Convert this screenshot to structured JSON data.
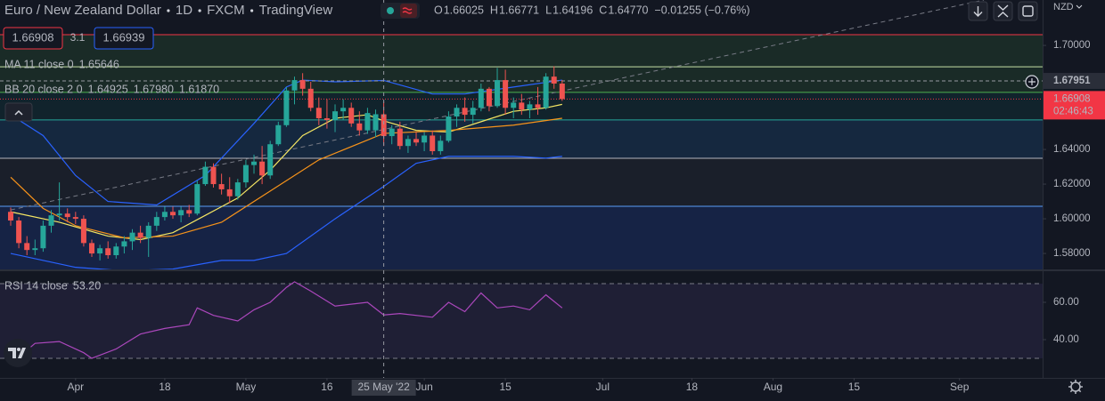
{
  "header": {
    "pieces": [
      "Euro / New Zealand Dollar",
      "1D",
      "FXCM",
      "TradingView"
    ],
    "ohlc": [
      {
        "key": "O",
        "value": "1.66025"
      },
      {
        "key": "H",
        "value": "1.66771"
      },
      {
        "key": "L",
        "value": "1.64196"
      },
      {
        "key": "C",
        "value": "1.64770"
      }
    ],
    "change": "−0.01255 (−0.76%)"
  },
  "trade": {
    "sell": "1.66908",
    "spread": "3.1",
    "buy": "1.66939"
  },
  "currency": "NZD",
  "chart_data": {
    "type": "candlestick",
    "up_color": "#26a69a",
    "down_color": "#ef5350",
    "xlim": [
      -1.32,
      127.25
    ],
    "xticks": [
      {
        "value": 8,
        "label": "Apr"
      },
      {
        "value": 19,
        "label": "18"
      },
      {
        "value": 29,
        "label": "May"
      },
      {
        "value": 39,
        "label": "16"
      },
      {
        "value": 51,
        "label": "Jun"
      },
      {
        "value": 61,
        "label": "15"
      },
      {
        "value": 73,
        "label": "Jul"
      },
      {
        "value": 84,
        "label": "18"
      },
      {
        "value": 94,
        "label": "Aug"
      },
      {
        "value": 104,
        "label": "15"
      },
      {
        "value": 117,
        "label": "Sep"
      }
    ],
    "crosshair": {
      "value": 46,
      "label": "25 May '22"
    },
    "ylim": [
      1.5708,
      1.7262
    ],
    "yticks": [
      {
        "value": 1.7,
        "label": "1.70000"
      },
      {
        "value": 1.64,
        "label": "1.64000"
      },
      {
        "value": 1.62,
        "label": "1.62000"
      },
      {
        "value": 1.6,
        "label": "1.60000"
      },
      {
        "value": 1.58,
        "label": "1.58000"
      }
    ],
    "open": [
      1.604,
      1.599,
      1.586,
      1.582,
      1.583,
      1.596,
      1.602,
      1.603,
      1.601,
      1.6,
      1.586,
      1.58,
      1.583,
      1.579,
      1.584,
      1.587,
      1.592,
      1.589,
      1.596,
      1.601,
      1.604,
      1.602,
      1.605,
      1.603,
      1.62,
      1.63,
      1.62,
      1.617,
      1.613,
      1.621,
      1.631,
      1.633,
      1.625,
      1.643,
      1.654,
      1.674,
      1.68,
      1.675,
      1.664,
      1.658,
      1.657,
      1.662,
      1.664,
      1.655,
      1.651,
      1.651,
      1.66025,
      1.6477,
      1.652,
      1.642,
      1.646,
      1.644,
      1.648,
      1.639,
      1.645,
      1.659,
      1.664,
      1.66,
      1.664,
      1.675,
      1.665,
      1.68,
      1.664,
      1.667,
      1.663,
      1.666,
      1.664,
      1.682,
      1.678
    ],
    "high": [
      1.6065,
      1.601,
      1.59,
      1.588,
      1.599,
      1.605,
      1.621,
      1.606,
      1.604,
      1.602,
      1.588,
      1.585,
      1.587,
      1.586,
      1.59,
      1.594,
      1.596,
      1.598,
      1.604,
      1.607,
      1.607,
      1.607,
      1.608,
      1.622,
      1.633,
      1.632,
      1.626,
      1.624,
      1.623,
      1.634,
      1.637,
      1.642,
      1.645,
      1.656,
      1.676,
      1.682,
      1.684,
      1.679,
      1.67,
      1.669,
      1.666,
      1.669,
      1.667,
      1.662,
      1.664,
      1.663,
      1.66771,
      1.654,
      1.656,
      1.648,
      1.65,
      1.65,
      1.651,
      1.648,
      1.662,
      1.666,
      1.67,
      1.668,
      1.678,
      1.676,
      1.687,
      1.686,
      1.67,
      1.672,
      1.668,
      1.676,
      1.684,
      1.688,
      1.68
    ],
    "low": [
      1.596,
      1.583,
      1.579,
      1.579,
      1.581,
      1.592,
      1.599,
      1.598,
      1.597,
      1.584,
      1.578,
      1.576,
      1.577,
      1.577,
      1.58,
      1.582,
      1.586,
      1.578,
      1.593,
      1.599,
      1.6,
      1.598,
      1.601,
      1.602,
      1.619,
      1.618,
      1.614,
      1.609,
      1.611,
      1.618,
      1.626,
      1.62,
      1.623,
      1.642,
      1.653,
      1.666,
      1.671,
      1.662,
      1.654,
      1.652,
      1.65,
      1.657,
      1.653,
      1.648,
      1.649,
      1.647,
      1.64196,
      1.643,
      1.64,
      1.638,
      1.642,
      1.639,
      1.637,
      1.637,
      1.644,
      1.653,
      1.656,
      1.655,
      1.662,
      1.662,
      1.664,
      1.66,
      1.658,
      1.66,
      1.658,
      1.66,
      1.663,
      1.675,
      1.668
    ],
    "close": [
      1.599,
      1.586,
      1.582,
      1.583,
      1.596,
      1.602,
      1.603,
      1.601,
      1.6,
      1.586,
      1.58,
      1.583,
      1.579,
      1.584,
      1.587,
      1.592,
      1.589,
      1.596,
      1.601,
      1.604,
      1.602,
      1.605,
      1.603,
      1.62,
      1.63,
      1.62,
      1.617,
      1.613,
      1.621,
      1.631,
      1.633,
      1.625,
      1.643,
      1.654,
      1.674,
      1.68,
      1.675,
      1.664,
      1.658,
      1.657,
      1.662,
      1.664,
      1.655,
      1.651,
      1.661,
      1.6603,
      1.6477,
      1.652,
      1.642,
      1.646,
      1.644,
      1.648,
      1.639,
      1.645,
      1.659,
      1.664,
      1.66,
      1.664,
      1.675,
      1.665,
      1.68,
      1.664,
      1.667,
      1.663,
      1.666,
      1.664,
      1.682,
      1.678,
      1.66908
    ],
    "last_price": {
      "value": 1.66908,
      "countdown": "02:46:43",
      "color": "#f23645"
    },
    "price_line": {
      "value": 1.67951
    },
    "levels": [
      {
        "value": 1.7062,
        "color": "#f23645",
        "fill": "rgba(76,175,80,0.13)"
      },
      {
        "value": 1.6877,
        "color": "#c5e1a5",
        "fill": "rgba(76,175,80,0.13)"
      },
      {
        "value": 1.6729,
        "color": "#4caf50",
        "fill": "rgba(0,150,136,0.10)"
      },
      {
        "value": 1.657,
        "color": "#26a69a",
        "fill": "rgba(33,150,243,0.14)"
      },
      {
        "value": 1.6349,
        "color": "#b2b5be",
        "fill": "rgba(120,123,134,0.08)"
      },
      {
        "value": 1.6072,
        "color": "#5b9cf6",
        "fill": "rgba(41,98,255,0.16)"
      }
    ],
    "trendline": {
      "color": "#787b86",
      "x": [
        0,
        120
      ],
      "values": [
        1.6051,
        1.7262
      ]
    },
    "series": [
      {
        "name": "MA 11 close 0",
        "lines": [
          {
            "color": "#f5e663",
            "value_label": "1.65646",
            "x": [
              0,
              6,
              12,
              16,
              20,
              24,
              28,
              32,
              36,
              40,
              44,
              46,
              50,
              54,
              58,
              62,
              66,
              68
            ],
            "values": [
              1.604,
              1.598,
              1.59,
              1.588,
              1.592,
              1.602,
              1.612,
              1.628,
              1.648,
              1.658,
              1.66,
              1.65646,
              1.651,
              1.65,
              1.656,
              1.662,
              1.664,
              1.666
            ]
          }
        ]
      },
      {
        "name": "BB 20 close 2 0",
        "lines": [
          {
            "color": "#f7931a",
            "value_label": "1.64925",
            "x": [
              0,
              4,
              8,
              14,
              20,
              26,
              32,
              38,
              46,
              54,
              62,
              68
            ],
            "values": [
              1.624,
              1.606,
              1.596,
              1.589,
              1.59,
              1.598,
              1.616,
              1.634,
              1.64925,
              1.651,
              1.654,
              1.658
            ]
          },
          {
            "color": "#2962ff",
            "value_label": "1.67980",
            "x": [
              0,
              4,
              8,
              12,
              18,
              24,
              30,
              34,
              36,
              40,
              46,
              52,
              56,
              62,
              68
            ],
            "values": [
              1.66,
              1.648,
              1.625,
              1.61,
              1.608,
              1.625,
              1.655,
              1.676,
              1.68,
              1.679,
              1.6798,
              1.672,
              1.672,
              1.676,
              1.68
            ]
          },
          {
            "color": "#2962ff",
            "value_label": "1.61870",
            "x": [
              0,
              8,
              14,
              20,
              26,
              30,
              34,
              40,
              46,
              50,
              54,
              62,
              66,
              68
            ],
            "values": [
              1.58,
              1.572,
              1.57,
              1.571,
              1.576,
              1.576,
              1.58,
              1.6,
              1.6187,
              1.632,
              1.636,
              1.636,
              1.635,
              1.636
            ]
          }
        ]
      }
    ]
  },
  "rsi_data": {
    "type": "line",
    "name": "RSI 14 close",
    "value_label": "53.20",
    "color": "#ab47bc",
    "ylim": [
      19.52,
      76.67
    ],
    "yticks": [
      {
        "value": 60,
        "label": "60.00"
      },
      {
        "value": 40,
        "label": "40.00"
      }
    ],
    "bands": [
      70,
      30
    ],
    "x": [
      0,
      3,
      6,
      9,
      10,
      13,
      16,
      19,
      22,
      23,
      25,
      28,
      30,
      32,
      34,
      35,
      37,
      40,
      44,
      46,
      48,
      52,
      54,
      56,
      58,
      60,
      62,
      64,
      66,
      68
    ],
    "values": [
      27,
      38,
      39,
      33,
      30,
      35,
      43,
      46,
      48,
      57,
      53,
      50,
      56,
      60,
      68,
      71,
      66,
      58,
      60,
      53.2,
      54,
      52,
      60,
      55,
      65,
      57,
      58,
      56,
      64,
      57
    ]
  }
}
